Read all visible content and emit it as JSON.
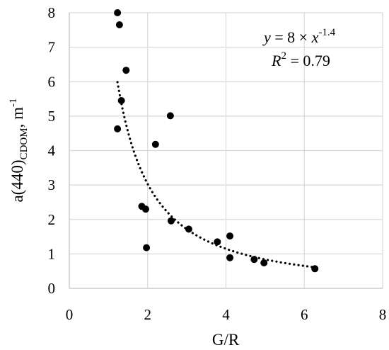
{
  "chart_data": {
    "type": "scatter",
    "title": "",
    "xlabel": "G/R",
    "ylabel_main": "a(440)",
    "ylabel_sub": "CDOM",
    "ylabel_unit": ", m",
    "ylabel_unit_exp": "-1",
    "xlim": [
      0,
      8
    ],
    "ylim": [
      0,
      8
    ],
    "x_ticks": [
      "0",
      "2",
      "4",
      "6",
      "8"
    ],
    "y_ticks": [
      "0",
      "1",
      "2",
      "3",
      "4",
      "5",
      "6",
      "7",
      "8"
    ],
    "grid": true,
    "series": [
      {
        "points": [
          {
            "x": 1.23,
            "y": 8.0
          },
          {
            "x": 1.28,
            "y": 7.65
          },
          {
            "x": 1.45,
            "y": 6.33
          },
          {
            "x": 1.33,
            "y": 5.45
          },
          {
            "x": 1.23,
            "y": 4.63
          },
          {
            "x": 2.58,
            "y": 5.01
          },
          {
            "x": 2.2,
            "y": 4.18
          },
          {
            "x": 1.85,
            "y": 2.38
          },
          {
            "x": 1.95,
            "y": 2.3
          },
          {
            "x": 1.97,
            "y": 1.18
          },
          {
            "x": 2.6,
            "y": 1.96
          },
          {
            "x": 3.05,
            "y": 1.72
          },
          {
            "x": 3.78,
            "y": 1.35
          },
          {
            "x": 4.1,
            "y": 1.52
          },
          {
            "x": 4.1,
            "y": 0.89
          },
          {
            "x": 4.72,
            "y": 0.84
          },
          {
            "x": 4.97,
            "y": 0.74
          },
          {
            "x": 6.27,
            "y": 0.57
          }
        ]
      }
    ],
    "trendline": {
      "type": "power",
      "coefficient": 8,
      "exponent": -1.4,
      "x_range": [
        1.23,
        6.27
      ],
      "style": "dotted"
    },
    "equation_label": {
      "y_var": "y",
      "eq_part": " = 8 × ",
      "x_var": "x",
      "exponent": "-1.4",
      "r2_var": "R",
      "r2_exp": "2",
      "r2_value": " = 0.79"
    }
  }
}
